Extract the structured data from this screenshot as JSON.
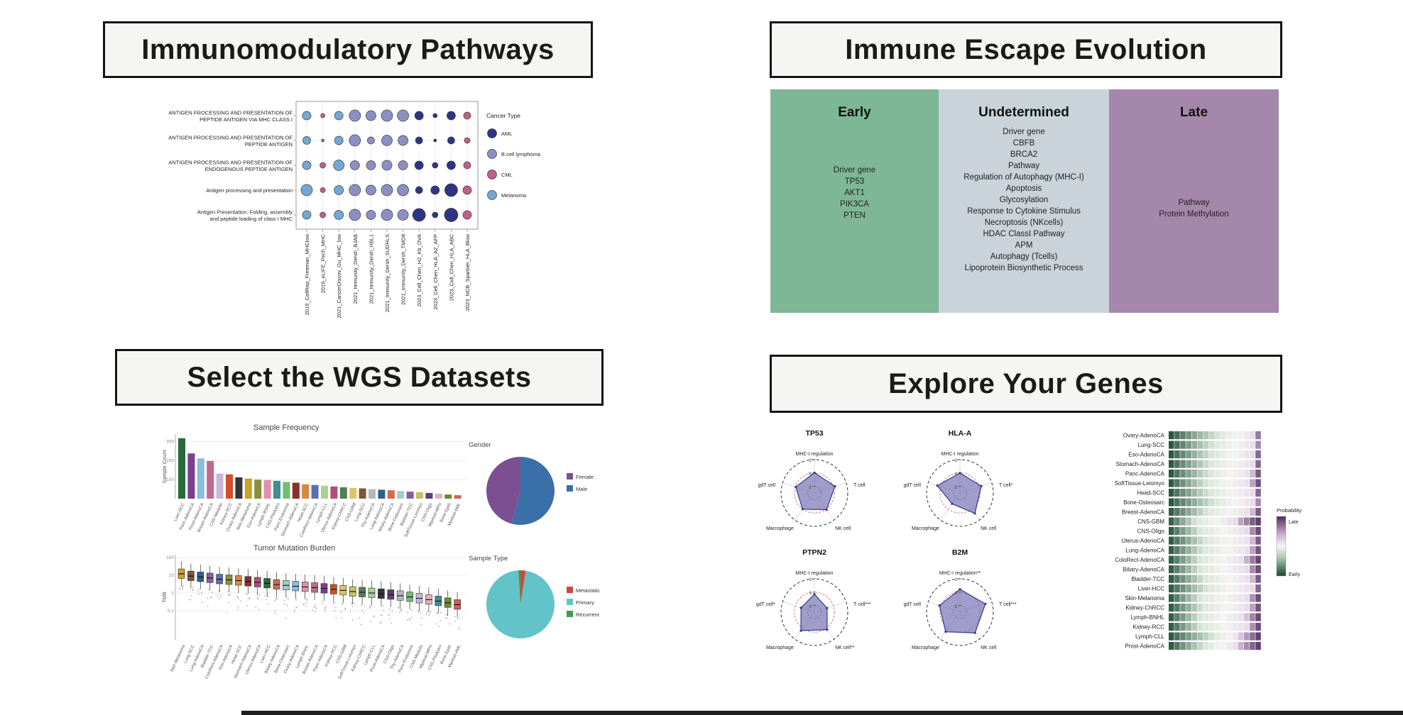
{
  "panels": {
    "pathways": {
      "title": "Immunomodulatory Pathways"
    },
    "evolution": {
      "title": "Immune Escape Evolution"
    },
    "wgs": {
      "title": "Select the WGS Datasets"
    },
    "explore": {
      "title": "Explore Your Genes"
    }
  },
  "evolution_columns": [
    {
      "label": "Early",
      "color": "#7eb795",
      "items_offset": 62,
      "items": [
        "Driver gene",
        "TP53",
        "AKT1",
        "PIK3CA",
        "PTEN"
      ]
    },
    {
      "label": "Undetermined",
      "color": "#c9d3d9",
      "items_offset": 8,
      "items": [
        "Driver gene",
        "CBFB",
        "BRCA2",
        "Pathway",
        "Regulation of Autophagy (MHC-I)",
        "Apoptosis",
        "Glycosylation",
        "Response to Cytokine Stimulus",
        "Necroptosis (NKcells)",
        "HDAC ClassI Pathway",
        "APM",
        "Autophagy (Tcells)",
        "Lipoprotein Biosynthetic Process"
      ]
    },
    {
      "label": "Late",
      "color": "#a687ac",
      "items_offset": 108,
      "items": [
        "Pathway",
        "Protein Methylation"
      ]
    }
  ],
  "chart_data": [
    {
      "id": "dotplot",
      "type": "scatter",
      "rows": [
        {
          "lines": [
            "ANTIGEN PROCESSING AND PRESENTATION OF",
            "PEPTIDE ANTIGEN VIA MHC CLASS I"
          ]
        },
        {
          "lines": [
            "ANTIGEN PROCESSING AND PRESENTATION OF",
            "PEPTIDE ANTIGEN"
          ]
        },
        {
          "lines": [
            "ANTIGEN PROCESSING AND PRESENTATION OF",
            "ENDOGENOUS PEPTIDE ANTIGEN"
          ]
        },
        {
          "lines": [
            "Antigen processing and presentation"
          ]
        },
        {
          "lines": [
            "Antigen Presentation: Folding, assembly",
            "and peptide loading of class I MHC"
          ]
        }
      ],
      "datasets": [
        {
          "name": "2019_CellRep_Freeman_MHClow",
          "cancer": "Melanoma"
        },
        {
          "name": "2019_eLIFE_Pech_MHC",
          "cancer": "CML"
        },
        {
          "name": "2021_CancerDiscov_Gu_MHC_low",
          "cancer": "Melanoma"
        },
        {
          "name": "2021_Immunity_Dersh_BJAB",
          "cancer": "B cell lymphoma"
        },
        {
          "name": "2021_Immunity_Dersh_HBL1",
          "cancer": "B cell lymphoma"
        },
        {
          "name": "2021_Immunity_Dersh_SUDHLS",
          "cancer": "B cell lymphoma"
        },
        {
          "name": "2021_Immunity_Dersh_TMD8",
          "cancer": "B cell lymphoma"
        },
        {
          "name": "2023_Cell_Chen_H2_Kb_OVA",
          "cancer": "AML"
        },
        {
          "name": "2023_Cell_Chen_HLA_A2_AFP",
          "cancer": "AML"
        },
        {
          "name": "2023_Cell_Chen_HLA_ABC",
          "cancer": "AML"
        },
        {
          "name": "2023_NCB_Sparbier_HLA_Blow",
          "cancer": "CML"
        }
      ],
      "legend": {
        "title": "Cancer Type",
        "items": [
          {
            "label": "AML",
            "color": "#2e3585"
          },
          {
            "label": "B cell lymphoma",
            "color": "#8d8fc4"
          },
          {
            "label": "CML",
            "color": "#c05f8e"
          },
          {
            "label": "Melanoma",
            "color": "#72a8d3"
          }
        ]
      },
      "size_matrix": [
        [
          6,
          3,
          6,
          8,
          7,
          8,
          8,
          6,
          3,
          6,
          5
        ],
        [
          5.5,
          2,
          6,
          8,
          5,
          7.5,
          7,
          5,
          2,
          5,
          4
        ],
        [
          6,
          4,
          7.5,
          6.5,
          6.5,
          7,
          6.5,
          6,
          4,
          6,
          5
        ],
        [
          8,
          3.5,
          6.5,
          8,
          7,
          8,
          8,
          5,
          6,
          9,
          6
        ],
        [
          6,
          4,
          6.5,
          8,
          6.5,
          8,
          7.5,
          9,
          4,
          9.5,
          6
        ]
      ]
    },
    {
      "id": "sample_frequency",
      "type": "bar",
      "title": "Sample Frequency",
      "ylabel": "Sample Count",
      "yticks": [
        100,
        200,
        300
      ],
      "ylim": [
        0,
        340
      ],
      "categories": [
        "Liver-HCC",
        "Panc-AdenoCA",
        "Prost-AdenoCA",
        "Breast-AdenoCA",
        "CNS-Medullo",
        "Kidney-RCC",
        "Ovary-AdenoCA",
        "Skin-Melanoma",
        "Eso-AdenoCA",
        "Lymph-BNHL",
        "CNS-PiloAstro",
        "Panc-Endocrine",
        "Stomach-AdenoCA",
        "Head-SCC",
        "ColoRect-AdenoCA",
        "Lymph-CLL",
        "Uterus-AdenoCA",
        "Kidney-ChRCC",
        "CNS-GBM",
        "Lung-SCC",
        "Thy-AdenoCA",
        "Lung-AdenoCA",
        "Biliary-AdenoCA",
        "Bone-Osteosarc",
        "Bladder-TCC",
        "SoftTissue-Leiomyo",
        "CNS-Oligo",
        "Myeloid-MPN",
        "Bone-Epith",
        "Myeloid-AML"
      ],
      "values": [
        318,
        238,
        212,
        198,
        132,
        128,
        112,
        106,
        100,
        98,
        94,
        88,
        84,
        76,
        72,
        68,
        64,
        60,
        57,
        54,
        50,
        47,
        44,
        40,
        37,
        34,
        30,
        26,
        22,
        18
      ],
      "colors": [
        "#276b3a",
        "#7b3f8f",
        "#88bede",
        "#c06a8c",
        "#c9b6d8",
        "#d14f2a",
        "#33343a",
        "#c9a227",
        "#8a8f3c",
        "#e38fb0",
        "#3f8f8a",
        "#6fbf73",
        "#8c2d2d",
        "#d98841",
        "#5b6fae",
        "#a8d38f",
        "#b04f79",
        "#4f7f4f",
        "#d8c76a",
        "#7f5539",
        "#b8b8b8",
        "#2f5f8f",
        "#d16a4f",
        "#9fd0c6",
        "#815fa5",
        "#c2c26a",
        "#5f3f6f",
        "#e0b0c0",
        "#6a8f2f",
        "#cf5f5f"
      ]
    },
    {
      "id": "gender",
      "type": "pie",
      "title": "Gender",
      "draw_order": [
        1,
        0
      ],
      "slices": [
        {
          "label": "Female",
          "value": 46,
          "color": "#7b4f92"
        },
        {
          "label": "Male",
          "value": 54,
          "color": "#3a6fa8"
        }
      ]
    },
    {
      "id": "tmb",
      "type": "box",
      "title": "Tumor Mutation Burden",
      "ylabel": "TMB",
      "yticks": [
        100,
        10,
        1,
        0.1
      ],
      "categories": [
        "Skin-Melanoma",
        "Lung-SCC",
        "Lung-AdenoCA",
        "Bladder-TCC",
        "ColoRect-AdenoCA",
        "Eso-AdenoCA",
        "Head-SCC",
        "Stomach-AdenoCA",
        "Uterus-AdenoCA",
        "Liver-HCC",
        "Biliary-AdenoCA",
        "Bone-Osteosarc",
        "Ovary-AdenoCA",
        "Lymph-BNHL",
        "Breast-AdenoCA",
        "Panc-AdenoCA",
        "Kidney-RCC",
        "CNS-GBM",
        "SoftTissue-Leiomyo",
        "Kidney-ChRCC",
        "Lymph-CLL",
        "Prost-AdenoCA",
        "CNS-Oligo",
        "Thy-AdenoCA",
        "Panc-Endocrine",
        "CNS-Medullo",
        "Myeloid-MPN",
        "CNS-PiloAstro",
        "Bone-Epith",
        "Myeloid-AML"
      ],
      "medians": [
        12,
        9,
        8,
        7,
        6,
        5.5,
        5,
        4.5,
        4,
        3.5,
        3,
        2.7,
        2.4,
        2.2,
        2,
        1.8,
        1.6,
        1.4,
        1.2,
        1.1,
        1,
        0.9,
        0.8,
        0.7,
        0.6,
        0.5,
        0.42,
        0.35,
        0.28,
        0.22
      ],
      "colors": [
        "#c9a227",
        "#7f5539",
        "#2f5f8f",
        "#815fa5",
        "#5b6fae",
        "#8a8f3c",
        "#d98841",
        "#8c2d2d",
        "#b04f79",
        "#276b3a",
        "#d16a4f",
        "#9fd0c6",
        "#88bede",
        "#e38fb0",
        "#c06a8c",
        "#7b3f8f",
        "#d14f2a",
        "#d8c76a",
        "#c2c26a",
        "#4f7f4f",
        "#a8d38f",
        "#33343a",
        "#5f3f6f",
        "#b8b8b8",
        "#6fbf73",
        "#c9b6d8",
        "#e0b0c0",
        "#3f8f8a",
        "#6a8f2f",
        "#cf5f5f"
      ]
    },
    {
      "id": "sample_type",
      "type": "pie",
      "title": "Sample Type",
      "draw_order": [
        0,
        1,
        2
      ],
      "slices": [
        {
          "label": "Metastatic",
          "value": 2.5,
          "color": "#d0493a"
        },
        {
          "label": "Primary",
          "value": 96.5,
          "color": "#62c3c8"
        },
        {
          "label": "Recurrent",
          "value": 1,
          "color": "#3f9e4d"
        }
      ]
    },
    {
      "id": "radars",
      "type": "radar",
      "scale_ticks": [
        1,
        0,
        -1
      ],
      "charts": [
        {
          "title": "TP53",
          "labels": [
            "MHC-I regulation",
            "T cell",
            "NK cell",
            "Macrophage",
            "gdT cell"
          ],
          "values": [
            0.02,
            0.12,
            0.05,
            0.0,
            -0.03
          ]
        },
        {
          "title": "HLA-A",
          "labels": [
            "MHC-I regulation",
            "T cell*",
            "NK cell",
            "Macrophage",
            "gdT cell"
          ],
          "values": [
            0.0,
            0.18,
            0.4,
            -0.5,
            0.28
          ]
        },
        {
          "title": "PTPN2",
          "labels": [
            "MHC-I regulation",
            "T cell***",
            "NK cell**",
            "Macrophage",
            "gdT cell*"
          ],
          "values": [
            -0.15,
            -0.5,
            0.12,
            0.22,
            -0.45
          ]
        },
        {
          "title": "B2M",
          "labels": [
            "MHC-I regulation**",
            "T cell***",
            "NK cell",
            "Macrophage",
            "gdT cell"
          ],
          "values": [
            0.22,
            0.5,
            0.42,
            0.32,
            0.12
          ]
        }
      ]
    },
    {
      "id": "evolution_bars",
      "type": "heatmap-bars",
      "legend": {
        "title": "Probability",
        "top": "Late",
        "bottom": "Early"
      },
      "rows": [
        {
          "label": "Ovary-AdenoCA",
          "green": 0.55,
          "purple": 0.06
        },
        {
          "label": "Lung-SCC",
          "green": 0.5,
          "purple": 0.05
        },
        {
          "label": "Eso-AdenoCA",
          "green": 0.48,
          "purple": 0.08
        },
        {
          "label": "Stomach-AdenoCA",
          "green": 0.46,
          "purple": 0.08
        },
        {
          "label": "Panc-AdenoCA",
          "green": 0.45,
          "purple": 0.1
        },
        {
          "label": "SoftTissue-Leiomyo",
          "green": 0.42,
          "purple": 0.12
        },
        {
          "label": "Head-SCC",
          "green": 0.45,
          "purple": 0.08
        },
        {
          "label": "Bone-Osteosarc",
          "green": 0.5,
          "purple": 0.05
        },
        {
          "label": "Breast-AdenoCA",
          "green": 0.42,
          "purple": 0.1
        },
        {
          "label": "CNS-GBM",
          "green": 0.3,
          "purple": 0.28
        },
        {
          "label": "CNS-Oligo",
          "green": 0.35,
          "purple": 0.15
        },
        {
          "label": "Uterus-AdenoCA",
          "green": 0.4,
          "purple": 0.1
        },
        {
          "label": "Lung-AdenoCA",
          "green": 0.38,
          "purple": 0.12
        },
        {
          "label": "ColoRect-AdenoCA",
          "green": 0.35,
          "purple": 0.18
        },
        {
          "label": "Biliary-AdenoCA",
          "green": 0.35,
          "purple": 0.15
        },
        {
          "label": "Bladder-TCC",
          "green": 0.4,
          "purple": 0.1
        },
        {
          "label": "Liver-HCC",
          "green": 0.42,
          "purple": 0.08
        },
        {
          "label": "Skin-Melanoma",
          "green": 0.35,
          "purple": 0.14
        },
        {
          "label": "Kidney-ChRCC",
          "green": 0.38,
          "purple": 0.12
        },
        {
          "label": "Lymph-BNHL",
          "green": 0.35,
          "purple": 0.16
        },
        {
          "label": "Kidney-RCC",
          "green": 0.36,
          "purple": 0.14
        },
        {
          "label": "Lymph-CLL",
          "green": 0.5,
          "purple": 0.22
        },
        {
          "label": "Prost-AdenoCA",
          "green": 0.4,
          "purple": 0.25
        }
      ]
    }
  ],
  "footer": {
    "color": "#202020"
  }
}
